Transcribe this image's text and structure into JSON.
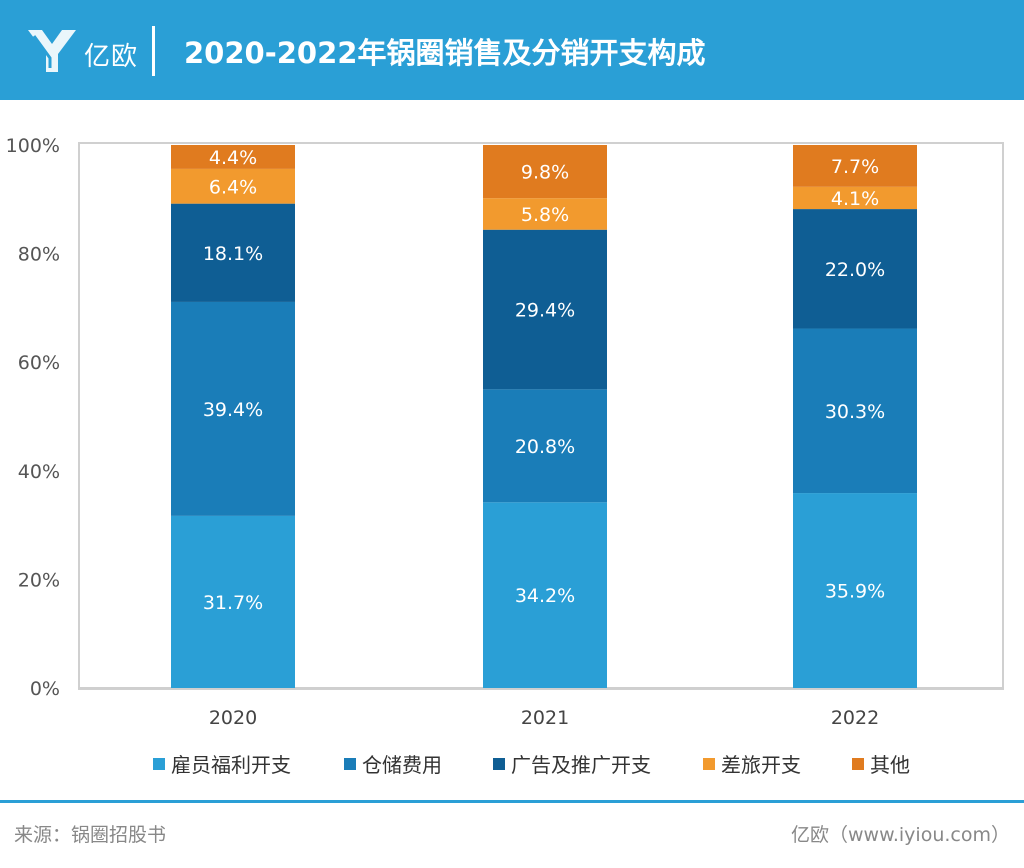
{
  "header": {
    "logo_text": "亿欧",
    "title": "2020-2022年锅圈销售及分销开支构成"
  },
  "chart_data": {
    "type": "bar",
    "stacked": true,
    "categories": [
      "2020",
      "2021",
      "2022"
    ],
    "ylim": [
      0,
      100
    ],
    "yticks": [
      "0%",
      "20%",
      "40%",
      "60%",
      "80%",
      "100%"
    ],
    "series": [
      {
        "name": "雇员福利开支",
        "color": "#2a9fd6",
        "values": [
          31.7,
          34.2,
          35.9
        ],
        "labels": [
          "31.7%",
          "34.2%",
          "35.9%"
        ]
      },
      {
        "name": "仓储费用",
        "color": "#1a7db8",
        "values": [
          39.4,
          20.8,
          30.3
        ],
        "labels": [
          "39.4%",
          "20.8%",
          "30.3%"
        ]
      },
      {
        "name": "广告及推广开支",
        "color": "#0f5e94",
        "values": [
          18.1,
          29.4,
          22.0
        ],
        "labels": [
          "18.1%",
          "29.4%",
          "22.0%"
        ]
      },
      {
        "name": "差旅开支",
        "color": "#f29a2e",
        "values": [
          6.4,
          5.8,
          4.1
        ],
        "labels": [
          "6.4%",
          "5.8%",
          "4.1%"
        ]
      },
      {
        "name": "其他",
        "color": "#e07b1f",
        "values": [
          4.4,
          9.8,
          7.7
        ],
        "labels": [
          "4.4%",
          "9.8%",
          "7.7%"
        ]
      }
    ]
  },
  "footer": {
    "source": "来源：锅圈招股书",
    "credit": "亿欧（www.iyiou.com）"
  }
}
